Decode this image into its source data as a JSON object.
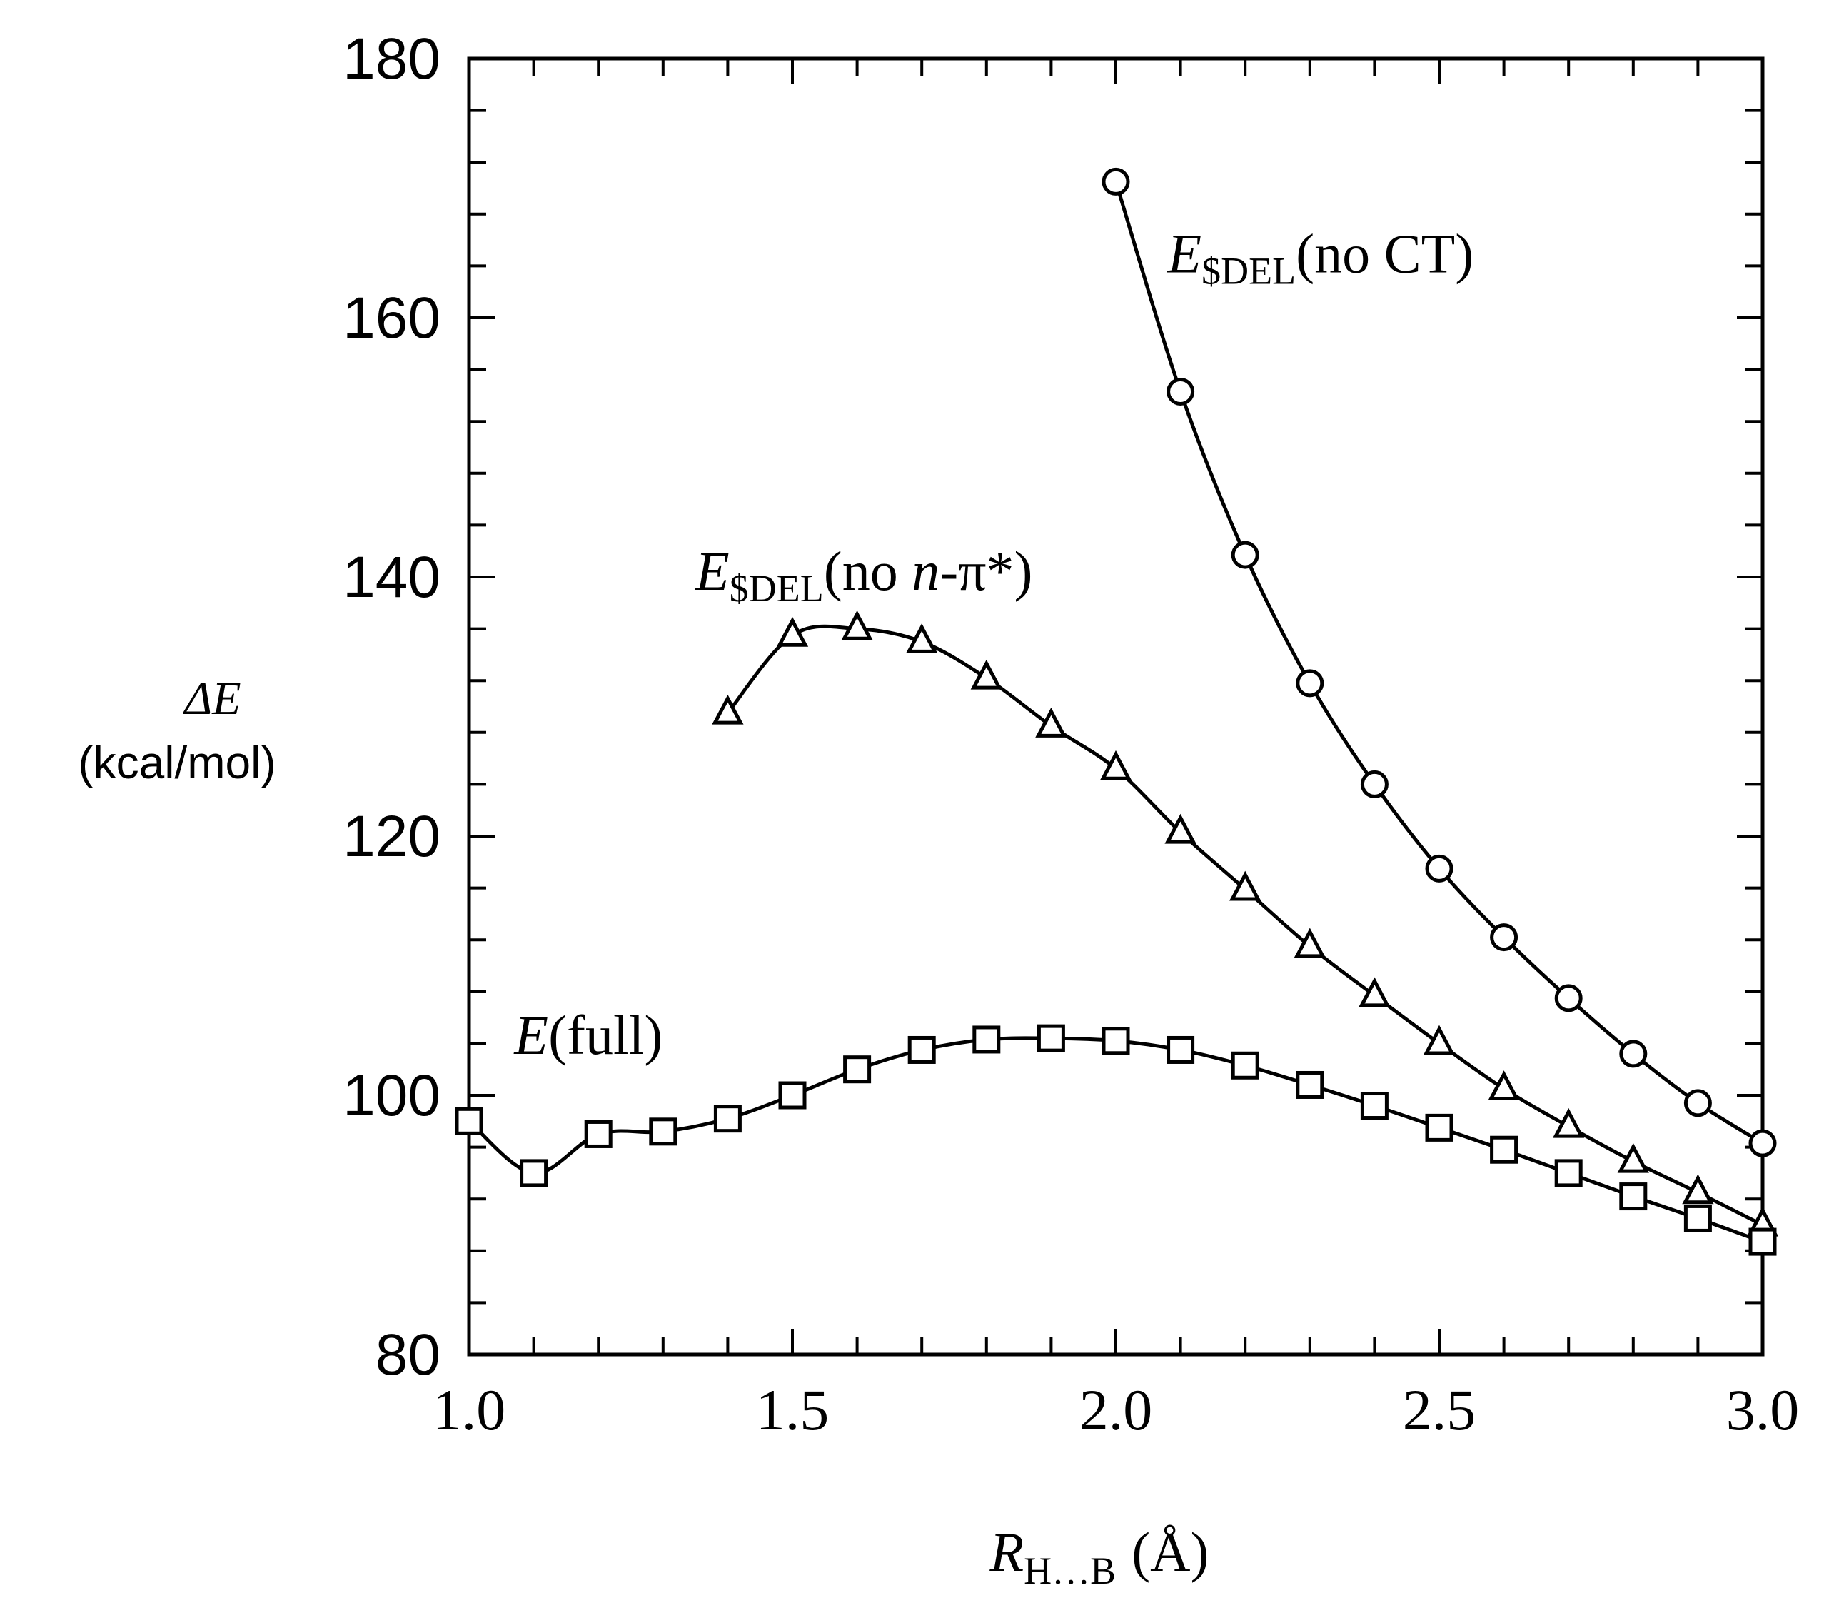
{
  "chart_data": {
    "type": "line",
    "ylabel": {
      "symbol": "ΔE",
      "unit": "(kcal/mol)"
    },
    "xlabel": {
      "symbol": "R",
      "subscript": "H…B",
      "unit": "(Å)"
    },
    "xlim": [
      1.0,
      3.0
    ],
    "ylim": [
      80,
      180
    ],
    "x_ticks": [
      {
        "value": 1.0,
        "label": "1.0"
      },
      {
        "value": 1.5,
        "label": "1.5"
      },
      {
        "value": 2.0,
        "label": "2.0"
      },
      {
        "value": 2.5,
        "label": "2.5"
      },
      {
        "value": 3.0,
        "label": "3.0"
      }
    ],
    "y_ticks": [
      {
        "value": 80,
        "label": "80"
      },
      {
        "value": 100,
        "label": "100"
      },
      {
        "value": 120,
        "label": "120"
      },
      {
        "value": 140,
        "label": "140"
      },
      {
        "value": 160,
        "label": "160"
      },
      {
        "value": 180,
        "label": "180"
      }
    ],
    "x_minor_step": 0.1,
    "y_minor_step": 4,
    "series": [
      {
        "key": "no-ct",
        "marker": "circle",
        "label": {
          "main": "E",
          "sub": "$DEL",
          "tail": "(no CT)",
          "italic_part": ""
        },
        "label_anchor": [
          2.08,
          163.5
        ],
        "x": [
          2.0,
          2.1,
          2.2,
          2.3,
          2.4,
          2.5,
          2.6,
          2.7,
          2.8,
          2.9,
          3.0
        ],
        "y": [
          170.5,
          154.3,
          141.7,
          131.8,
          124.0,
          117.5,
          112.2,
          107.5,
          103.2,
          99.4,
          96.3
        ]
      },
      {
        "key": "no-n-pi",
        "marker": "triangle",
        "label": {
          "main": "E",
          "sub": "$DEL",
          "tail": "(no ",
          "italic_part": "n",
          "tail2": "-π*)"
        },
        "label_anchor": [
          1.35,
          139.0
        ],
        "x": [
          1.4,
          1.5,
          1.6,
          1.7,
          1.8,
          1.9,
          2.0,
          2.1,
          2.2,
          2.3,
          2.4,
          2.5,
          2.6,
          2.7,
          2.8,
          2.9,
          3.0
        ],
        "y": [
          129.5,
          135.5,
          136.0,
          135.0,
          132.2,
          128.5,
          125.2,
          120.3,
          115.9,
          111.5,
          107.7,
          104.0,
          100.5,
          97.6,
          94.9,
          92.5,
          90.0
        ]
      },
      {
        "key": "full",
        "marker": "square",
        "label": {
          "main": "E",
          "sub": "",
          "tail": "(full)",
          "italic_part": ""
        },
        "label_anchor": [
          1.07,
          103.2
        ],
        "x": [
          1.0,
          1.1,
          1.2,
          1.3,
          1.4,
          1.5,
          1.6,
          1.7,
          1.8,
          1.9,
          2.0,
          2.1,
          2.2,
          2.3,
          2.4,
          2.5,
          2.6,
          2.7,
          2.8,
          2.9,
          3.0
        ],
        "y": [
          98.0,
          94.0,
          97.0,
          97.2,
          98.2,
          100.0,
          102.0,
          103.5,
          104.3,
          104.4,
          104.2,
          103.5,
          102.3,
          100.8,
          99.2,
          97.5,
          95.8,
          94.0,
          92.2,
          90.5,
          88.7
        ]
      }
    ]
  }
}
